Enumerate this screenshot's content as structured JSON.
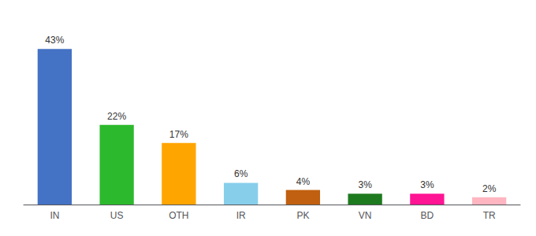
{
  "chart_data": {
    "type": "bar",
    "categories": [
      "IN",
      "US",
      "OTH",
      "IR",
      "PK",
      "VN",
      "BD",
      "TR"
    ],
    "values": [
      43,
      22,
      17,
      6,
      4,
      3,
      3,
      2
    ],
    "value_labels": [
      "43%",
      "22%",
      "17%",
      "6%",
      "4%",
      "3%",
      "3%",
      "2%"
    ],
    "colors": [
      "#4472C4",
      "#2DB92D",
      "#FFA500",
      "#87CEEB",
      "#C06010",
      "#1E7A1E",
      "#FF1493",
      "#FFB6C1"
    ],
    "ylim": [
      0,
      50
    ],
    "data_labels": true,
    "tick_labels": "x",
    "grid": false
  }
}
